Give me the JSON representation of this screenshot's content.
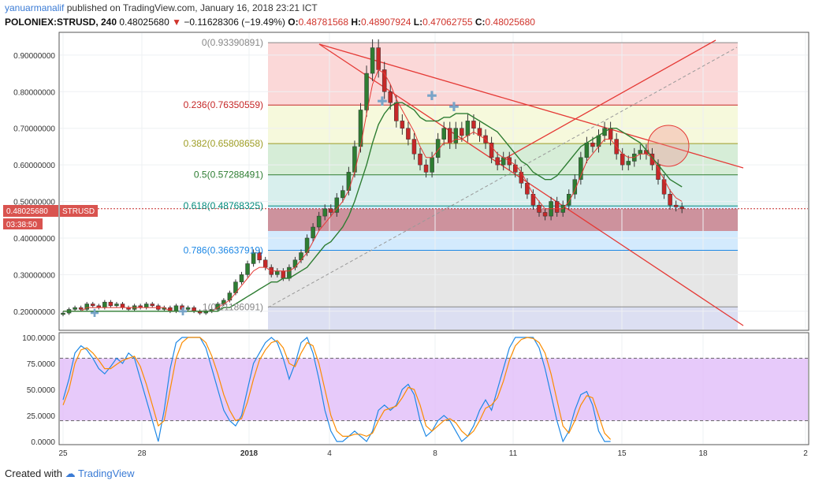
{
  "header": {
    "user": "yanuarmanalif",
    "published": "published on TradingView.com, January 16, 2018 23:21 ICT",
    "symbol": "POLONIEX:STRUSD, 240",
    "last": "0.48025680",
    "change": "−0.11628306 (−19.49%)",
    "o_label": "O:",
    "o": "0.48781568",
    "h_label": "H:",
    "h": "0.48907924",
    "l_label": "L:",
    "l": "0.47062755",
    "c_label": "C:",
    "c": "0.48025680"
  },
  "footer": {
    "created_with": "Created with",
    "brand": "TradingView"
  },
  "price_tag": {
    "price": "0.48025680",
    "symbol": "STRUSD",
    "countdown": "03:38:50"
  },
  "colors": {
    "up": "#2e7d32",
    "down": "#c62828",
    "trend": "#e53935",
    "ema_fast": "#e53935",
    "ema_slow": "#2e7d32",
    "stoch_k": "#1e88e5",
    "stoch_d": "#fb8c00",
    "stoch_band": "#e1bdf9"
  },
  "chart_data": [
    {
      "type": "candlestick",
      "title": "POLONIEX:STRUSD, 240",
      "ylim": [
        0.15,
        0.96
      ],
      "y_ticks": [
        "0.90000000",
        "0.80000000",
        "0.70000000",
        "0.60000000",
        "0.50000000",
        "0.40000000",
        "0.30000000",
        "0.20000000"
      ],
      "y_tick_values": [
        0.9,
        0.8,
        0.7,
        0.6,
        0.5,
        0.4,
        0.3,
        0.2
      ],
      "x_ticks": [
        "25",
        "28",
        "2018",
        "4",
        "8",
        "11",
        "15",
        "18",
        "2"
      ],
      "fib_levels": [
        {
          "label": "0(0.93390891)",
          "value": 0.93390891,
          "color": "#888888"
        },
        {
          "label": "0.236(0.76350559)",
          "value": 0.76350559,
          "color": "#c62828"
        },
        {
          "label": "0.382(0.65808658)",
          "value": 0.65808658,
          "color": "#9e9d24"
        },
        {
          "label": "0.5(0.57288491)",
          "value": 0.57288491,
          "color": "#2e7d32"
        },
        {
          "label": "0.618(0.48768325)",
          "value": 0.48768325,
          "color": "#00897b"
        },
        {
          "label": "0.786(0.36637919)",
          "value": 0.36637919,
          "color": "#1e88e5"
        },
        {
          "label": "1(0.21186091)",
          "value": 0.21186091,
          "color": "#888888"
        }
      ],
      "candles": [
        0.195,
        0.205,
        0.21,
        0.205,
        0.22,
        0.215,
        0.21,
        0.225,
        0.215,
        0.22,
        0.21,
        0.205,
        0.215,
        0.21,
        0.22,
        0.215,
        0.205,
        0.21,
        0.2,
        0.215,
        0.205,
        0.21,
        0.2,
        0.195,
        0.2,
        0.205,
        0.22,
        0.23,
        0.25,
        0.28,
        0.3,
        0.33,
        0.36,
        0.34,
        0.32,
        0.3,
        0.31,
        0.29,
        0.32,
        0.34,
        0.36,
        0.4,
        0.43,
        0.46,
        0.48,
        0.47,
        0.51,
        0.53,
        0.58,
        0.65,
        0.75,
        0.85,
        0.92,
        0.86,
        0.8,
        0.77,
        0.72,
        0.7,
        0.67,
        0.63,
        0.6,
        0.58,
        0.62,
        0.67,
        0.7,
        0.66,
        0.7,
        0.68,
        0.72,
        0.7,
        0.68,
        0.66,
        0.62,
        0.6,
        0.62,
        0.6,
        0.58,
        0.55,
        0.52,
        0.49,
        0.47,
        0.46,
        0.5,
        0.47,
        0.49,
        0.52,
        0.56,
        0.62,
        0.66,
        0.65,
        0.68,
        0.7,
        0.67,
        0.63,
        0.6,
        0.61,
        0.63,
        0.64,
        0.63,
        0.6,
        0.56,
        0.52,
        0.49,
        0.485,
        0.48
      ],
      "ema_fast": [
        0.2,
        0.2,
        0.2,
        0.2,
        0.21,
        0.21,
        0.21,
        0.21,
        0.21,
        0.21,
        0.21,
        0.21,
        0.21,
        0.21,
        0.21,
        0.21,
        0.21,
        0.21,
        0.2,
        0.2,
        0.2,
        0.2,
        0.2,
        0.2,
        0.2,
        0.2,
        0.21,
        0.22,
        0.23,
        0.25,
        0.27,
        0.29,
        0.31,
        0.32,
        0.32,
        0.31,
        0.31,
        0.31,
        0.31,
        0.32,
        0.34,
        0.36,
        0.39,
        0.42,
        0.44,
        0.46,
        0.48,
        0.5,
        0.53,
        0.58,
        0.65,
        0.74,
        0.82,
        0.86,
        0.85,
        0.82,
        0.78,
        0.75,
        0.72,
        0.69,
        0.65,
        0.62,
        0.62,
        0.64,
        0.66,
        0.66,
        0.67,
        0.67,
        0.68,
        0.69,
        0.68,
        0.67,
        0.65,
        0.63,
        0.62,
        0.61,
        0.6,
        0.58,
        0.55,
        0.52,
        0.5,
        0.48,
        0.48,
        0.48,
        0.48,
        0.5,
        0.53,
        0.57,
        0.61,
        0.63,
        0.65,
        0.67,
        0.67,
        0.65,
        0.63,
        0.62,
        0.62,
        0.63,
        0.63,
        0.62,
        0.59,
        0.56,
        0.53,
        0.51,
        0.5
      ],
      "ema_slow": [
        0.2,
        0.2,
        0.2,
        0.2,
        0.2,
        0.2,
        0.2,
        0.2,
        0.2,
        0.2,
        0.2,
        0.2,
        0.2,
        0.2,
        0.2,
        0.2,
        0.2,
        0.2,
        0.2,
        0.2,
        0.2,
        0.2,
        0.2,
        0.2,
        0.2,
        0.2,
        0.2,
        0.21,
        0.21,
        0.22,
        0.23,
        0.24,
        0.25,
        0.26,
        0.27,
        0.28,
        0.28,
        0.29,
        0.29,
        0.3,
        0.31,
        0.32,
        0.34,
        0.36,
        0.38,
        0.39,
        0.41,
        0.43,
        0.46,
        0.5,
        0.55,
        0.6,
        0.66,
        0.71,
        0.74,
        0.76,
        0.77,
        0.77,
        0.76,
        0.75,
        0.73,
        0.72,
        0.72,
        0.72,
        0.73,
        0.73,
        0.74,
        0.74,
        0.74,
        0.73,
        0.72,
        0.71,
        0.7,
        0.69,
        0.67,
        0.65,
        0.63,
        0.61,
        0.6,
        0.58,
        0.57,
        0.56,
        0.56,
        0.57,
        0.59,
        0.61,
        0.63,
        0.65,
        0.66,
        0.67,
        0.68,
        0.69,
        0.7,
        0.7,
        0.69,
        0.68,
        0.67,
        0.66,
        0.64,
        0.62,
        0.6,
        0.58,
        0.56,
        0.55,
        0.54
      ]
    },
    {
      "type": "line",
      "title": "Stochastic",
      "ylim": [
        0,
        100
      ],
      "y_ticks": [
        "100.0000",
        "75.0000",
        "50.0000",
        "25.0000",
        "0.0000"
      ],
      "y_tick_values": [
        100,
        75,
        50,
        25,
        0
      ],
      "band": [
        20,
        80
      ],
      "series": [
        {
          "values": [
            40,
            60,
            85,
            92,
            88,
            80,
            70,
            65,
            72,
            80,
            75,
            85,
            80,
            60,
            40,
            20,
            0,
            30,
            70,
            95,
            100,
            100,
            100,
            100,
            90,
            70,
            50,
            30,
            20,
            15,
            25,
            50,
            75,
            85,
            95,
            100,
            95,
            80,
            60,
            75,
            95,
            100,
            85,
            60,
            30,
            10,
            0,
            0,
            5,
            10,
            5,
            0,
            10,
            30,
            35,
            30,
            35,
            50,
            55,
            45,
            20,
            5,
            10,
            20,
            25,
            20,
            10,
            0,
            5,
            15,
            30,
            40,
            30,
            50,
            70,
            90,
            100,
            100,
            100,
            100,
            90,
            70,
            45,
            20,
            0,
            10,
            30,
            45,
            48,
            35,
            10,
            0,
            0
          ]
        },
        {
          "values": [
            35,
            50,
            75,
            88,
            90,
            85,
            78,
            70,
            70,
            74,
            78,
            80,
            82,
            72,
            55,
            35,
            15,
            20,
            50,
            80,
            95,
            100,
            100,
            100,
            95,
            82,
            65,
            45,
            30,
            20,
            22,
            38,
            60,
            78,
            88,
            95,
            97,
            90,
            75,
            72,
            85,
            95,
            92,
            75,
            50,
            25,
            10,
            5,
            5,
            7,
            7,
            5,
            8,
            20,
            30,
            32,
            34,
            42,
            52,
            50,
            35,
            15,
            10,
            15,
            20,
            22,
            18,
            10,
            5,
            10,
            20,
            32,
            35,
            42,
            58,
            78,
            92,
            98,
            100,
            99,
            95,
            85,
            65,
            40,
            15,
            8,
            20,
            35,
            44,
            42,
            25,
            8,
            2
          ]
        }
      ]
    }
  ]
}
